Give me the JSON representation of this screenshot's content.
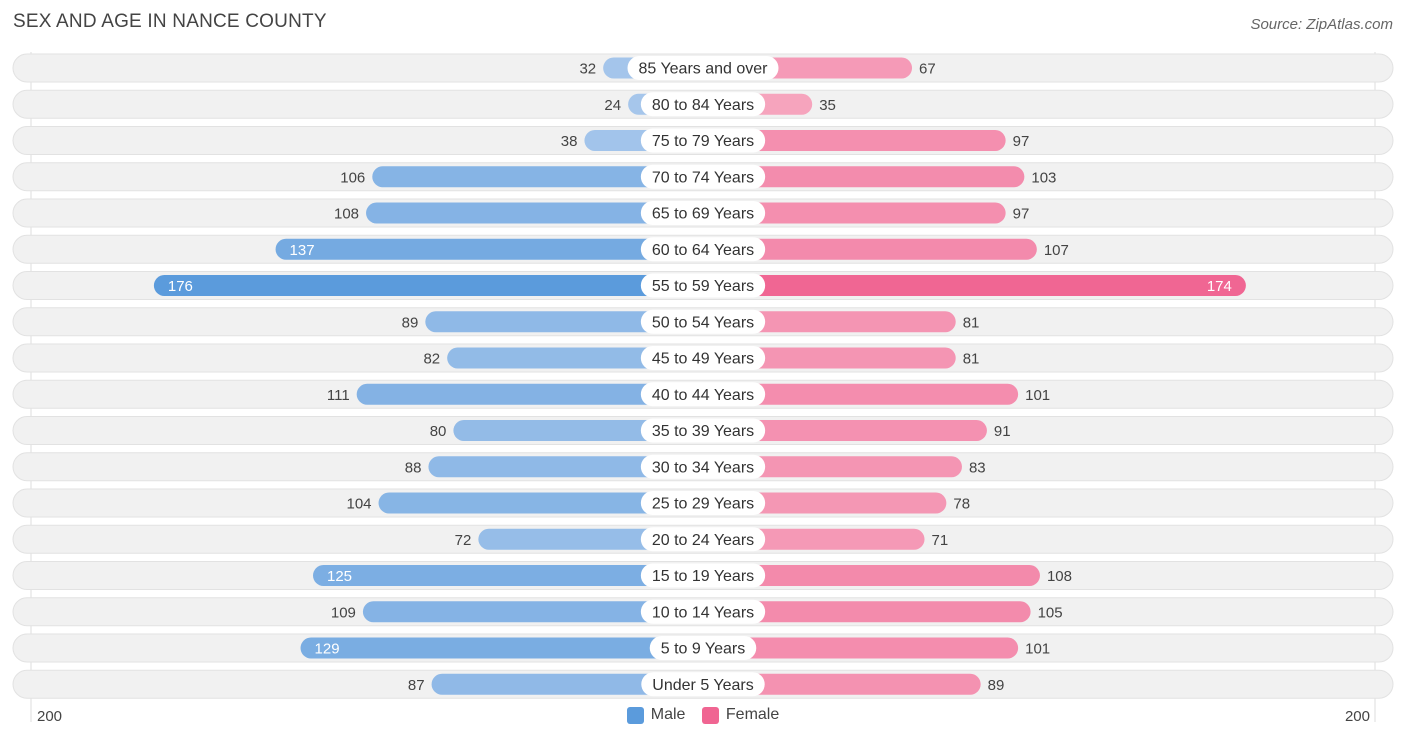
{
  "title": "SEX AND AGE IN NANCE COUNTY",
  "source": "Source: ZipAtlas.com",
  "colors": {
    "male_light": "#a9c8ec",
    "male_dark": "#5b9bdc",
    "female_light": "#f6a9c1",
    "female_dark": "#f06592"
  },
  "chart_data": {
    "type": "bar",
    "orientation": "horizontal-diverging",
    "categories": [
      "85 Years and over",
      "80 to 84 Years",
      "75 to 79 Years",
      "70 to 74 Years",
      "65 to 69 Years",
      "60 to 64 Years",
      "55 to 59 Years",
      "50 to 54 Years",
      "45 to 49 Years",
      "40 to 44 Years",
      "35 to 39 Years",
      "30 to 34 Years",
      "25 to 29 Years",
      "20 to 24 Years",
      "15 to 19 Years",
      "10 to 14 Years",
      "5 to 9 Years",
      "Under 5 Years"
    ],
    "series": [
      {
        "name": "Male",
        "values": [
          32,
          24,
          38,
          106,
          108,
          137,
          176,
          89,
          82,
          111,
          80,
          88,
          104,
          72,
          125,
          109,
          129,
          87
        ]
      },
      {
        "name": "Female",
        "values": [
          67,
          35,
          97,
          103,
          97,
          107,
          174,
          81,
          81,
          101,
          91,
          83,
          78,
          71,
          108,
          105,
          101,
          89
        ]
      }
    ],
    "axis_min_label": "200",
    "axis_max_label": "200",
    "xlim": [
      -200,
      200
    ],
    "legend_position": "bottom-center"
  }
}
